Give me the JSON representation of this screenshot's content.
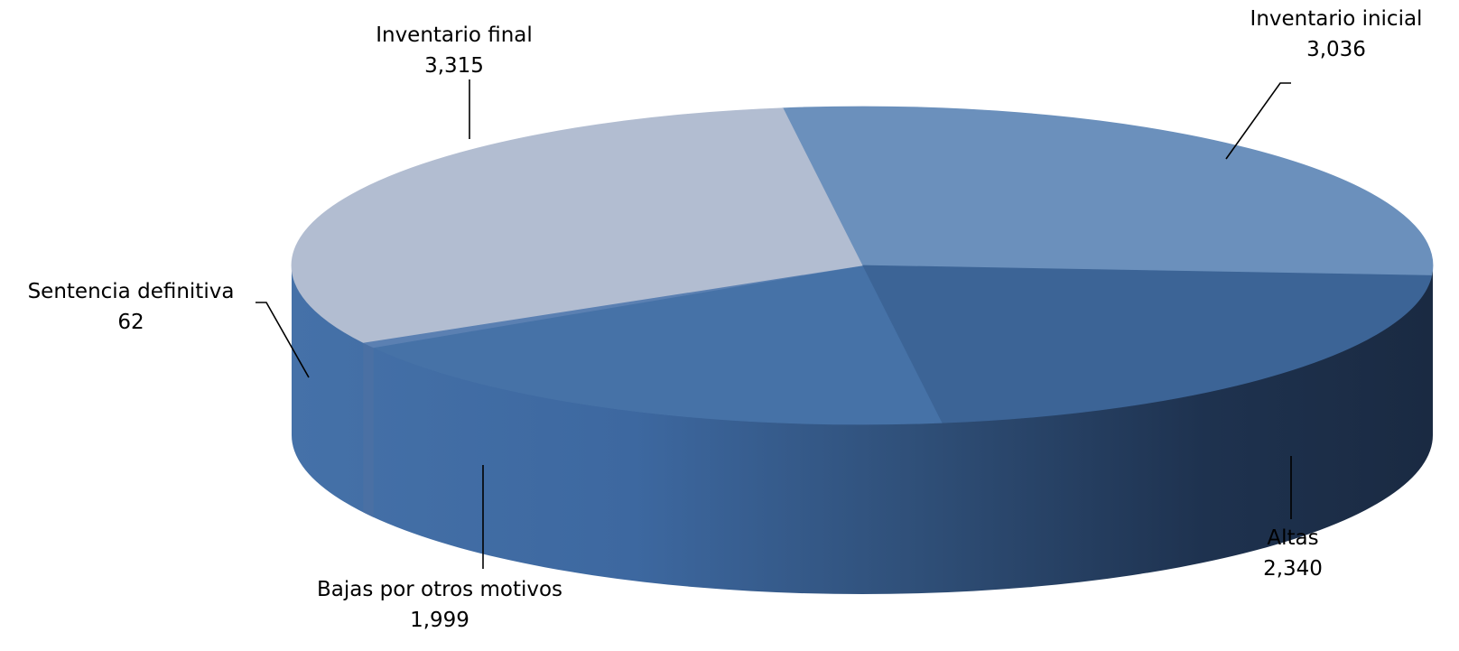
{
  "chart_data": {
    "type": "pie",
    "title": "",
    "three_d": true,
    "legend": "none",
    "slices": [
      {
        "label": "Inventario inicial",
        "value": 3036,
        "value_label": "3,036",
        "color": "#6b90bc",
        "side_color": "#4a6c99"
      },
      {
        "label": "Altas",
        "value": 2340,
        "value_label": "2,340",
        "color": "#3c6496",
        "side_color": "#1e3350"
      },
      {
        "label": "Bajas por otros motivos",
        "value": 1999,
        "value_label": "1,999",
        "color": "#4672a7",
        "side_color": "#3f6ca6"
      },
      {
        "label": "Sentencia definitiva",
        "value": 62,
        "value_label": "62",
        "color": "#5b80b2",
        "side_color": "#4a70a4"
      },
      {
        "label": "Inventario final",
        "value": 3315,
        "value_label": "3,315",
        "color": "#b2bdd1",
        "side_color": "#9aa8c0"
      }
    ]
  }
}
